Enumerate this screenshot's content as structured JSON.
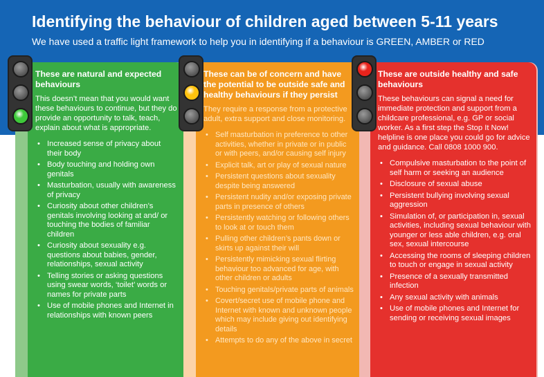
{
  "header": {
    "title": "Identifying the behaviour of children aged between 5-11 years",
    "subtitle": "We have used a traffic light framework to help you in identifying if a behaviour is GREEN, AMBER or RED"
  },
  "colors": {
    "header_blue": "#1565b5",
    "green": "#3aab45",
    "amber": "#f39a1f",
    "red": "#e5312d",
    "lamp_green": "#3ec93a",
    "lamp_amber": "#ffc20e",
    "lamp_red": "#e8231c"
  },
  "columns": {
    "green": {
      "heading": "These are natural and expected behaviours",
      "intro": "This doesn’t mean that you would want these behaviours to continue, but they do provide an opportunity to talk, teach, explain about what is appropriate.",
      "items": [
        "Increased sense of privacy about their body",
        "Body touching and holding own genitals",
        "Masturbation, usually with awareness of privacy",
        "Curiosity about other children’s genitals involving looking at and/ or touching the bodies of familiar children",
        "Curiosity about sexuality e.g. questions about babies, gender, relationships, sexual activity",
        "Telling stories or asking questions using swear words, ‘toilet’ words or names for private parts",
        "Use of mobile phones and Internet in relationships with known peers"
      ]
    },
    "amber": {
      "heading": "These can be of concern and have the potential to be outside safe and healthy behaviours if they persist",
      "intro": "They require a response from a protective adult, extra support and close monitoring.",
      "items": [
        "Self masturbation in preference to other activities, whether in private or in public or with peers, and/or causing self injury",
        "Explicit talk, art or play of sexual nature",
        "Persistent questions about sexuality despite being answered",
        "Persistent nudity and/or exposing private parts in presence of others",
        "Persistently watching or following others to look at or touch them",
        "Pulling other children’s pants down or skirts up against their will",
        "Persistently mimicking sexual flirting behaviour too advanced for age, with other children or adults",
        "Touching genitals/private parts of animals",
        "Covert/secret use of mobile phone and Internet with known and unknown people which may include giving out identifying details",
        "Attempts to do any of the above in secret"
      ]
    },
    "red": {
      "heading": "These are outside healthy and safe behaviours",
      "intro": "These behaviours can signal a need for immediate protection and support from a childcare professional, e.g. GP or social worker. As a first step the Stop It Now! helpline is one place you could go for advice and guidance. Call 0808 1000 900.",
      "items": [
        "Compulsive masturbation to the point of self harm or seeking an audience",
        "Disclosure of sexual abuse",
        "Persistent bullying involving sexual aggression",
        "Simulation of, or participation in, sexual activities, including sexual behaviour with younger or less able children, e.g. oral sex, sexual intercourse",
        "Accessing the rooms of sleeping children to touch or engage in sexual activity",
        "Presence of a sexually transmitted infection",
        "Any sexual activity with animals",
        "Use of mobile phones and Internet for sending or receiving sexual images"
      ]
    }
  }
}
